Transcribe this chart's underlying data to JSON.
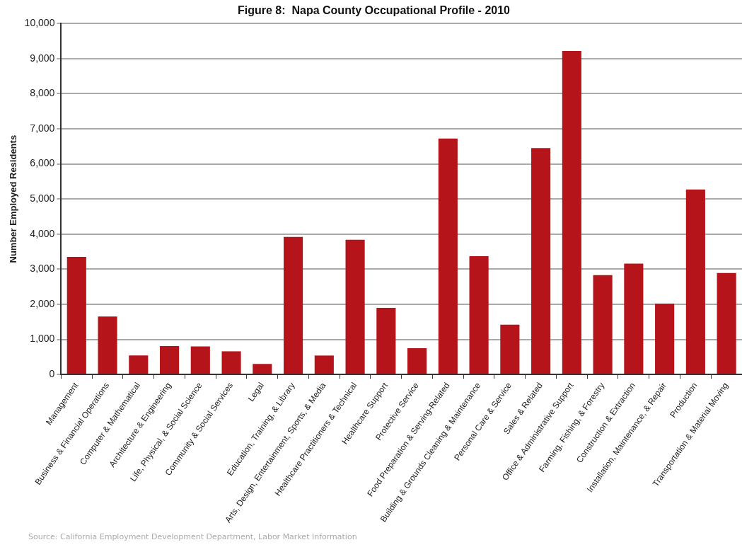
{
  "chart_data": {
    "type": "bar",
    "title": "Figure 8:  Napa County Occupational Profile - 2010",
    "ylabel": "Number Employed Residents",
    "categories": [
      "Management",
      "Business & Financial Operations",
      "Computer & Mathematical",
      "Architecture & Engineering",
      "Life, Physical, & Social Science",
      "Community & Social Services",
      "Legal",
      "Education, Training, & Library",
      "Arts, Design, Entertainment, Sports, & Media",
      "Healthcare Practitioners & Technical",
      "Healthcare Support",
      "Protective Service",
      "Food Preparation & Serving-Related",
      "Building & Grounds Cleaning & Maintenance",
      "Personal Care & Service",
      "Sales & Related",
      "Office & Administrative Support",
      "Farming, Fishing, & Forestry",
      "Construction & Extraction",
      "Installation, Maintenance, & Repair",
      "Production",
      "Transportation & Material Moving"
    ],
    "values": [
      3350,
      1650,
      540,
      810,
      800,
      660,
      300,
      3920,
      540,
      3840,
      1900,
      750,
      6720,
      3370,
      1420,
      6450,
      9220,
      2830,
      3160,
      2020,
      5270,
      2890
    ],
    "color": "#b5141b",
    "ylim": [
      0,
      10000
    ],
    "yticks": [
      {
        "value": 0,
        "label": "0"
      },
      {
        "value": 1000,
        "label": "1,000"
      },
      {
        "value": 2000,
        "label": "2,000"
      },
      {
        "value": 3000,
        "label": "3,000"
      },
      {
        "value": 4000,
        "label": "4,000"
      },
      {
        "value": 5000,
        "label": "5,000"
      },
      {
        "value": 6000,
        "label": "6,000"
      },
      {
        "value": 7000,
        "label": "7,000"
      },
      {
        "value": 8000,
        "label": "8,000"
      },
      {
        "value": 9000,
        "label": "9,000"
      },
      {
        "value": 10000,
        "label": "10,000"
      }
    ],
    "grid": "y",
    "legend": false,
    "annotations": [
      "Source: California Employment Development Department, Labor Market Information"
    ]
  }
}
